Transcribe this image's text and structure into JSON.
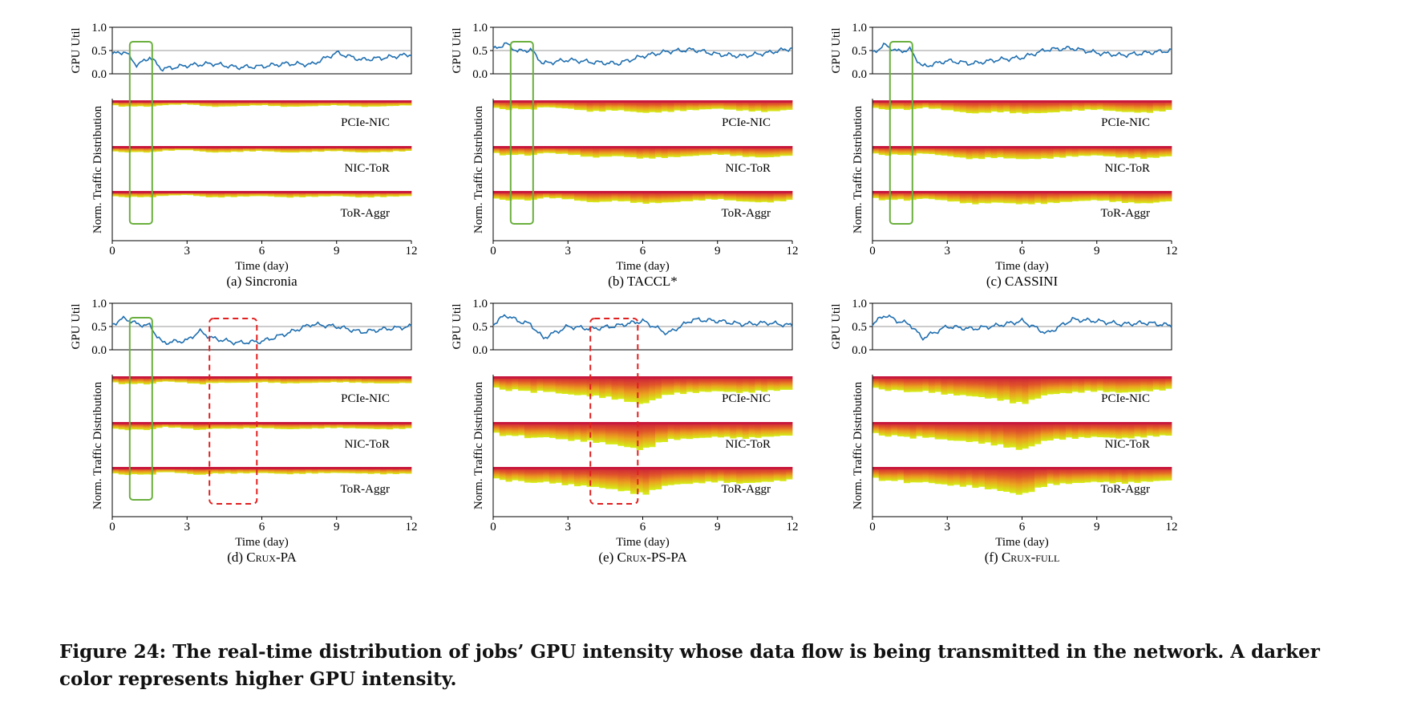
{
  "figure": {
    "y_label_top": "GPU Util",
    "y_label_bottom": "Norm. Traffic Distribution",
    "x_label": "Time (day)",
    "y_ticks": [
      "0.0",
      "0.5",
      "1.0"
    ],
    "x_ticks": [
      "0",
      "3",
      "6",
      "9",
      "12"
    ],
    "band_labels": [
      "PCIe-NIC",
      "NIC-ToR",
      "ToR-Aggr"
    ],
    "colors": {
      "line": "#1f6fb0",
      "ref_line": "#9a9a9a",
      "green_box": "#6aaf3d",
      "red_box": "#e02020",
      "dark": "#c8193c",
      "light": "#d4f018"
    }
  },
  "caption": {
    "label": "Figure 24:",
    "text": "The real-time distribution of jobs’ GPU intensity whose data flow is being transmitted in the network. A darker color represents higher GPU intensity."
  },
  "chart_data": [
    {
      "type": "line",
      "panel": "(a)",
      "name": "Sincronia",
      "title": "(a)  Sincronia",
      "xlabel": "Time (day)",
      "ylabel": "GPU Util",
      "xlim": [
        0,
        12
      ],
      "ylim": [
        0,
        1
      ],
      "reference_line": 0.5,
      "x": [
        0,
        0.5,
        1,
        1.5,
        2,
        3,
        4,
        5,
        6,
        7,
        8,
        9,
        10,
        11,
        12
      ],
      "values": [
        0.42,
        0.48,
        0.18,
        0.36,
        0.1,
        0.18,
        0.22,
        0.14,
        0.16,
        0.22,
        0.2,
        0.45,
        0.3,
        0.35,
        0.42
      ],
      "traffic_depth": [
        0.15,
        0.2,
        0.18,
        0.2,
        0.15,
        0.12,
        0.2,
        0.18,
        0.15,
        0.2,
        0.18,
        0.15,
        0.2,
        0.18,
        0.15
      ],
      "traffic_labels": [
        "PCIe-NIC",
        "NIC-ToR",
        "ToR-Aggr"
      ],
      "highlights": [
        {
          "style": "green-solid",
          "x_range": [
            0.7,
            1.6
          ]
        }
      ]
    },
    {
      "type": "line",
      "panel": "(b)",
      "name": "TACCL*",
      "title": "(b)  TACCL*",
      "xlabel": "Time (day)",
      "ylabel": "GPU Util",
      "xlim": [
        0,
        12
      ],
      "ylim": [
        0,
        1
      ],
      "reference_line": 0.5,
      "x": [
        0,
        0.5,
        1,
        1.5,
        2,
        3,
        4,
        5,
        6,
        7,
        8,
        9,
        10,
        11,
        12
      ],
      "values": [
        0.52,
        0.65,
        0.48,
        0.52,
        0.22,
        0.3,
        0.25,
        0.22,
        0.38,
        0.48,
        0.52,
        0.42,
        0.38,
        0.45,
        0.55
      ],
      "traffic_depth": [
        0.2,
        0.3,
        0.25,
        0.3,
        0.2,
        0.25,
        0.35,
        0.3,
        0.38,
        0.35,
        0.3,
        0.25,
        0.32,
        0.35,
        0.28
      ],
      "traffic_labels": [
        "PCIe-NIC",
        "NIC-ToR",
        "ToR-Aggr"
      ],
      "highlights": [
        {
          "style": "green-solid",
          "x_range": [
            0.7,
            1.6
          ]
        }
      ]
    },
    {
      "type": "line",
      "panel": "(c)",
      "name": "CASSINI",
      "title": "(c)  CASSINI",
      "xlabel": "Time (day)",
      "ylabel": "GPU Util",
      "xlim": [
        0,
        12
      ],
      "ylim": [
        0,
        1
      ],
      "reference_line": 0.5,
      "x": [
        0,
        0.5,
        1,
        1.5,
        2,
        3,
        4,
        5,
        6,
        7,
        8,
        9,
        10,
        11,
        12
      ],
      "values": [
        0.45,
        0.62,
        0.48,
        0.52,
        0.15,
        0.28,
        0.22,
        0.3,
        0.35,
        0.52,
        0.55,
        0.45,
        0.4,
        0.45,
        0.5
      ],
      "traffic_depth": [
        0.2,
        0.3,
        0.25,
        0.3,
        0.22,
        0.3,
        0.4,
        0.35,
        0.4,
        0.38,
        0.32,
        0.28,
        0.35,
        0.38,
        0.3
      ],
      "traffic_labels": [
        "PCIe-NIC",
        "NIC-ToR",
        "ToR-Aggr"
      ],
      "highlights": [
        {
          "style": "green-solid",
          "x_range": [
            0.7,
            1.6
          ]
        }
      ]
    },
    {
      "type": "line",
      "panel": "(d)",
      "name": "Crux-PA",
      "title_prefix": "(d)",
      "title_name": "Crux-PA",
      "xlabel": "Time (day)",
      "ylabel": "GPU Util",
      "xlim": [
        0,
        12
      ],
      "ylim": [
        0,
        1
      ],
      "reference_line": 0.5,
      "x": [
        0,
        0.5,
        1,
        1.5,
        2,
        3,
        3.5,
        4,
        5,
        6,
        7,
        8,
        9,
        10,
        11,
        12
      ],
      "values": [
        0.55,
        0.68,
        0.55,
        0.52,
        0.15,
        0.2,
        0.4,
        0.25,
        0.15,
        0.18,
        0.35,
        0.55,
        0.5,
        0.38,
        0.45,
        0.5
      ],
      "traffic_depth": [
        0.18,
        0.25,
        0.22,
        0.25,
        0.15,
        0.2,
        0.25,
        0.2,
        0.2,
        0.18,
        0.22,
        0.2,
        0.18,
        0.2,
        0.22,
        0.2
      ],
      "traffic_labels": [
        "PCIe-NIC",
        "NIC-ToR",
        "ToR-Aggr"
      ],
      "highlights": [
        {
          "style": "green-solid",
          "x_range": [
            0.7,
            1.6
          ]
        },
        {
          "style": "red-dashed",
          "x_range": [
            3.9,
            5.8
          ]
        }
      ]
    },
    {
      "type": "line",
      "panel": "(e)",
      "name": "Crux-PS-PA",
      "title_prefix": "(e)",
      "title_name": "Crux-PS-PA",
      "xlabel": "Time (day)",
      "ylabel": "GPU Util",
      "xlim": [
        0,
        12
      ],
      "ylim": [
        0,
        1
      ],
      "reference_line": 0.5,
      "x": [
        0,
        0.5,
        1,
        1.5,
        2,
        3,
        4,
        5,
        6,
        7,
        8,
        9,
        10,
        11,
        12
      ],
      "values": [
        0.55,
        0.75,
        0.62,
        0.55,
        0.25,
        0.5,
        0.45,
        0.52,
        0.62,
        0.35,
        0.65,
        0.62,
        0.55,
        0.58,
        0.52
      ],
      "traffic_depth": [
        0.3,
        0.45,
        0.4,
        0.5,
        0.45,
        0.55,
        0.6,
        0.7,
        0.85,
        0.55,
        0.5,
        0.45,
        0.5,
        0.45,
        0.4
      ],
      "traffic_labels": [
        "PCIe-NIC",
        "NIC-ToR",
        "ToR-Aggr"
      ],
      "highlights": [
        {
          "style": "red-dashed",
          "x_range": [
            3.9,
            5.8
          ]
        }
      ]
    },
    {
      "type": "line",
      "panel": "(f)",
      "name": "Crux-full",
      "title_prefix": "(f)",
      "title_name": "Crux-full",
      "xlabel": "Time (day)",
      "ylabel": "GPU Util",
      "xlim": [
        0,
        12
      ],
      "ylim": [
        0,
        1
      ],
      "reference_line": 0.5,
      "x": [
        0,
        0.5,
        1,
        1.5,
        2,
        3,
        4,
        5,
        6,
        7,
        8,
        9,
        10,
        11,
        12
      ],
      "values": [
        0.55,
        0.75,
        0.62,
        0.55,
        0.25,
        0.5,
        0.45,
        0.52,
        0.62,
        0.35,
        0.65,
        0.62,
        0.55,
        0.58,
        0.52
      ],
      "traffic_depth": [
        0.3,
        0.45,
        0.4,
        0.5,
        0.45,
        0.55,
        0.6,
        0.7,
        0.85,
        0.55,
        0.5,
        0.45,
        0.5,
        0.45,
        0.4
      ],
      "traffic_labels": [
        "PCIe-NIC",
        "NIC-ToR",
        "ToR-Aggr"
      ],
      "highlights": []
    }
  ]
}
